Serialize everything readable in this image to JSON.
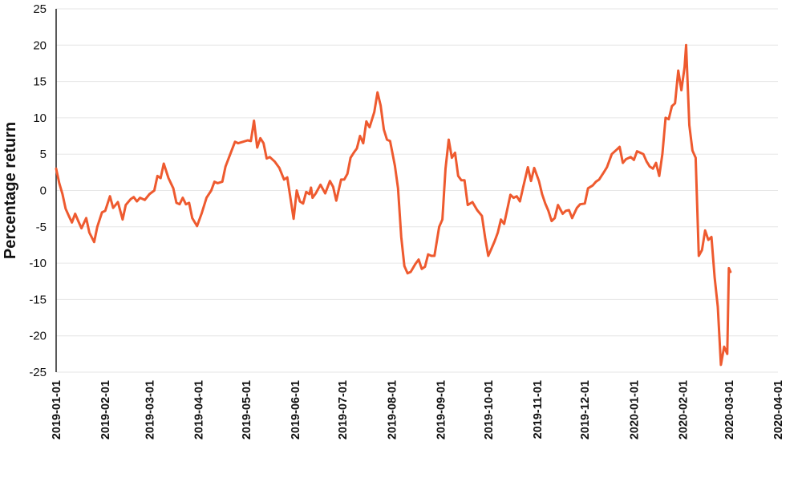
{
  "chart_data": {
    "type": "line",
    "title": "",
    "xlabel": "",
    "ylabel": "Percentage return",
    "ylim": [
      -25,
      25
    ],
    "yticks": [
      25,
      20,
      15,
      10,
      5,
      0,
      -5,
      -10,
      -15,
      -20,
      -25
    ],
    "xlim": [
      "2019-01-01",
      "2020-04-01"
    ],
    "x_tick_labels": [
      "2019-01-01",
      "2019-02-01",
      "2019-03-01",
      "2019-04-01",
      "2019-05-01",
      "2019-06-01",
      "2019-07-01",
      "2019-08-01",
      "2019-09-01",
      "2019-10-01",
      "2019-11-01",
      "2019-12-01",
      "2020-01-01",
      "2020-02-01",
      "2020-03-01",
      "2020-04-01"
    ],
    "grid": "horizontal",
    "legend": "none",
    "line_color": "#ee5a2f",
    "series": [
      {
        "points": [
          [
            "2019-01-01",
            3.0
          ],
          [
            "2019-01-03",
            1.0
          ],
          [
            "2019-01-05",
            -0.5
          ],
          [
            "2019-01-07",
            -2.5
          ],
          [
            "2019-01-09",
            -3.5
          ],
          [
            "2019-01-11",
            -4.4
          ],
          [
            "2019-01-13",
            -3.2
          ],
          [
            "2019-01-15",
            -4.2
          ],
          [
            "2019-01-17",
            -5.2
          ],
          [
            "2019-01-20",
            -3.8
          ],
          [
            "2019-01-22",
            -5.8
          ],
          [
            "2019-01-25",
            -7.1
          ],
          [
            "2019-01-27",
            -5.0
          ],
          [
            "2019-01-30",
            -3.0
          ],
          [
            "2019-02-01",
            -2.8
          ],
          [
            "2019-02-04",
            -0.8
          ],
          [
            "2019-02-06",
            -2.4
          ],
          [
            "2019-02-09",
            -1.6
          ],
          [
            "2019-02-12",
            -4.0
          ],
          [
            "2019-02-14",
            -2.0
          ],
          [
            "2019-02-17",
            -1.2
          ],
          [
            "2019-02-19",
            -0.9
          ],
          [
            "2019-02-21",
            -1.5
          ],
          [
            "2019-02-23",
            -1.0
          ],
          [
            "2019-02-26",
            -1.3
          ],
          [
            "2019-03-01",
            -0.5
          ],
          [
            "2019-03-04",
            0.0
          ],
          [
            "2019-03-06",
            2.0
          ],
          [
            "2019-03-08",
            1.7
          ],
          [
            "2019-03-10",
            3.7
          ],
          [
            "2019-03-13",
            1.7
          ],
          [
            "2019-03-16",
            0.3
          ],
          [
            "2019-03-18",
            -1.7
          ],
          [
            "2019-03-20",
            -1.9
          ],
          [
            "2019-03-22",
            -1.0
          ],
          [
            "2019-03-24",
            -1.9
          ],
          [
            "2019-03-26",
            -1.7
          ],
          [
            "2019-03-28",
            -3.8
          ],
          [
            "2019-03-31",
            -4.9
          ],
          [
            "2019-04-03",
            -3.1
          ],
          [
            "2019-04-06",
            -1.0
          ],
          [
            "2019-04-09",
            0.0
          ],
          [
            "2019-04-11",
            1.2
          ],
          [
            "2019-04-13",
            1.0
          ],
          [
            "2019-04-16",
            1.2
          ],
          [
            "2019-04-18",
            3.3
          ],
          [
            "2019-04-21",
            5.0
          ],
          [
            "2019-04-24",
            6.7
          ],
          [
            "2019-04-26",
            6.5
          ],
          [
            "2019-04-29",
            6.7
          ],
          [
            "2019-05-02",
            6.9
          ],
          [
            "2019-05-04",
            6.8
          ],
          [
            "2019-05-06",
            9.6
          ],
          [
            "2019-05-08",
            5.9
          ],
          [
            "2019-05-10",
            7.2
          ],
          [
            "2019-05-12",
            6.5
          ],
          [
            "2019-05-14",
            4.4
          ],
          [
            "2019-05-16",
            4.6
          ],
          [
            "2019-05-19",
            4.0
          ],
          [
            "2019-05-22",
            3.1
          ],
          [
            "2019-05-25",
            1.5
          ],
          [
            "2019-05-27",
            1.8
          ],
          [
            "2019-05-29",
            -1.0
          ],
          [
            "2019-05-31",
            -3.9
          ],
          [
            "2019-06-02",
            0.0
          ],
          [
            "2019-06-04",
            -1.5
          ],
          [
            "2019-06-06",
            -1.8
          ],
          [
            "2019-06-08",
            -0.2
          ],
          [
            "2019-06-10",
            -0.5
          ],
          [
            "2019-06-11",
            0.4
          ],
          [
            "2019-06-12",
            -1.0
          ],
          [
            "2019-06-14",
            -0.4
          ],
          [
            "2019-06-17",
            0.8
          ],
          [
            "2019-06-20",
            -0.4
          ],
          [
            "2019-06-23",
            1.3
          ],
          [
            "2019-06-25",
            0.5
          ],
          [
            "2019-06-27",
            -1.4
          ],
          [
            "2019-06-30",
            1.5
          ],
          [
            "2019-07-02",
            1.5
          ],
          [
            "2019-07-04",
            2.3
          ],
          [
            "2019-07-06",
            4.5
          ],
          [
            "2019-07-08",
            5.2
          ],
          [
            "2019-07-10",
            5.8
          ],
          [
            "2019-07-12",
            7.5
          ],
          [
            "2019-07-14",
            6.5
          ],
          [
            "2019-07-16",
            9.5
          ],
          [
            "2019-07-18",
            8.7
          ],
          [
            "2019-07-21",
            10.8
          ],
          [
            "2019-07-23",
            13.5
          ],
          [
            "2019-07-25",
            11.7
          ],
          [
            "2019-07-27",
            8.4
          ],
          [
            "2019-07-29",
            7.0
          ],
          [
            "2019-07-31",
            6.8
          ],
          [
            "2019-08-03",
            3.4
          ],
          [
            "2019-08-05",
            0.3
          ],
          [
            "2019-08-07",
            -6.4
          ],
          [
            "2019-08-09",
            -10.4
          ],
          [
            "2019-08-11",
            -11.4
          ],
          [
            "2019-08-13",
            -11.2
          ],
          [
            "2019-08-16",
            -10.1
          ],
          [
            "2019-08-18",
            -9.5
          ],
          [
            "2019-08-20",
            -10.8
          ],
          [
            "2019-08-22",
            -10.5
          ],
          [
            "2019-08-24",
            -8.8
          ],
          [
            "2019-08-26",
            -9.0
          ],
          [
            "2019-08-28",
            -9.0
          ],
          [
            "2019-08-31",
            -5.0
          ],
          [
            "2019-09-02",
            -4.0
          ],
          [
            "2019-09-04",
            3.0
          ],
          [
            "2019-09-06",
            7.0
          ],
          [
            "2019-09-08",
            4.5
          ],
          [
            "2019-09-10",
            5.2
          ],
          [
            "2019-09-12",
            2.0
          ],
          [
            "2019-09-14",
            1.4
          ],
          [
            "2019-09-16",
            1.4
          ],
          [
            "2019-09-18",
            -2.0
          ],
          [
            "2019-09-21",
            -1.6
          ],
          [
            "2019-09-24",
            -2.7
          ],
          [
            "2019-09-27",
            -3.5
          ],
          [
            "2019-09-29",
            -6.5
          ],
          [
            "2019-10-01",
            -9.0
          ],
          [
            "2019-10-03",
            -8.0
          ],
          [
            "2019-10-05",
            -7.0
          ],
          [
            "2019-10-07",
            -5.8
          ],
          [
            "2019-10-09",
            -4.0
          ],
          [
            "2019-10-11",
            -4.6
          ],
          [
            "2019-10-13",
            -2.6
          ],
          [
            "2019-10-15",
            -0.6
          ],
          [
            "2019-10-17",
            -1.0
          ],
          [
            "2019-10-19",
            -0.8
          ],
          [
            "2019-10-21",
            -1.5
          ],
          [
            "2019-10-23",
            0.4
          ],
          [
            "2019-10-26",
            3.2
          ],
          [
            "2019-10-28",
            1.3
          ],
          [
            "2019-10-30",
            3.1
          ],
          [
            "2019-11-02",
            1.3
          ],
          [
            "2019-11-04",
            -0.5
          ],
          [
            "2019-11-06",
            -1.8
          ],
          [
            "2019-11-08",
            -2.8
          ],
          [
            "2019-11-10",
            -4.2
          ],
          [
            "2019-11-12",
            -3.8
          ],
          [
            "2019-11-14",
            -2.0
          ],
          [
            "2019-11-17",
            -3.2
          ],
          [
            "2019-11-19",
            -2.8
          ],
          [
            "2019-11-21",
            -2.7
          ],
          [
            "2019-11-23",
            -3.8
          ],
          [
            "2019-11-26",
            -2.4
          ],
          [
            "2019-11-28",
            -1.9
          ],
          [
            "2019-12-01",
            -1.8
          ],
          [
            "2019-12-03",
            0.3
          ],
          [
            "2019-12-06",
            0.7
          ],
          [
            "2019-12-08",
            1.2
          ],
          [
            "2019-12-10",
            1.5
          ],
          [
            "2019-12-13",
            2.5
          ],
          [
            "2019-12-15",
            3.2
          ],
          [
            "2019-12-18",
            5.0
          ],
          [
            "2019-12-21",
            5.6
          ],
          [
            "2019-12-23",
            6.0
          ],
          [
            "2019-12-25",
            3.8
          ],
          [
            "2019-12-27",
            4.3
          ],
          [
            "2019-12-30",
            4.6
          ],
          [
            "2020-01-01",
            4.2
          ],
          [
            "2020-01-03",
            5.4
          ],
          [
            "2020-01-05",
            5.2
          ],
          [
            "2020-01-07",
            5.0
          ],
          [
            "2020-01-09",
            4.0
          ],
          [
            "2020-01-11",
            3.3
          ],
          [
            "2020-01-13",
            3.0
          ],
          [
            "2020-01-15",
            3.8
          ],
          [
            "2020-01-17",
            2.0
          ],
          [
            "2020-01-19",
            5.0
          ],
          [
            "2020-01-21",
            10.0
          ],
          [
            "2020-01-23",
            9.8
          ],
          [
            "2020-01-25",
            11.6
          ],
          [
            "2020-01-27",
            12.0
          ],
          [
            "2020-01-29",
            16.5
          ],
          [
            "2020-01-31",
            13.8
          ],
          [
            "2020-02-02",
            17.0
          ],
          [
            "2020-02-03",
            20.0
          ],
          [
            "2020-02-05",
            9.0
          ],
          [
            "2020-02-07",
            5.5
          ],
          [
            "2020-02-09",
            4.5
          ],
          [
            "2020-02-11",
            -9.0
          ],
          [
            "2020-02-13",
            -8.2
          ],
          [
            "2020-02-15",
            -5.5
          ],
          [
            "2020-02-17",
            -6.8
          ],
          [
            "2020-02-19",
            -6.4
          ],
          [
            "2020-02-21",
            -12.0
          ],
          [
            "2020-02-23",
            -16.0
          ],
          [
            "2020-02-25",
            -24.0
          ],
          [
            "2020-02-27",
            -21.5
          ],
          [
            "2020-02-29",
            -22.5
          ],
          [
            "2020-03-01",
            -10.7
          ],
          [
            "2020-03-02",
            -11.2
          ]
        ]
      }
    ]
  }
}
